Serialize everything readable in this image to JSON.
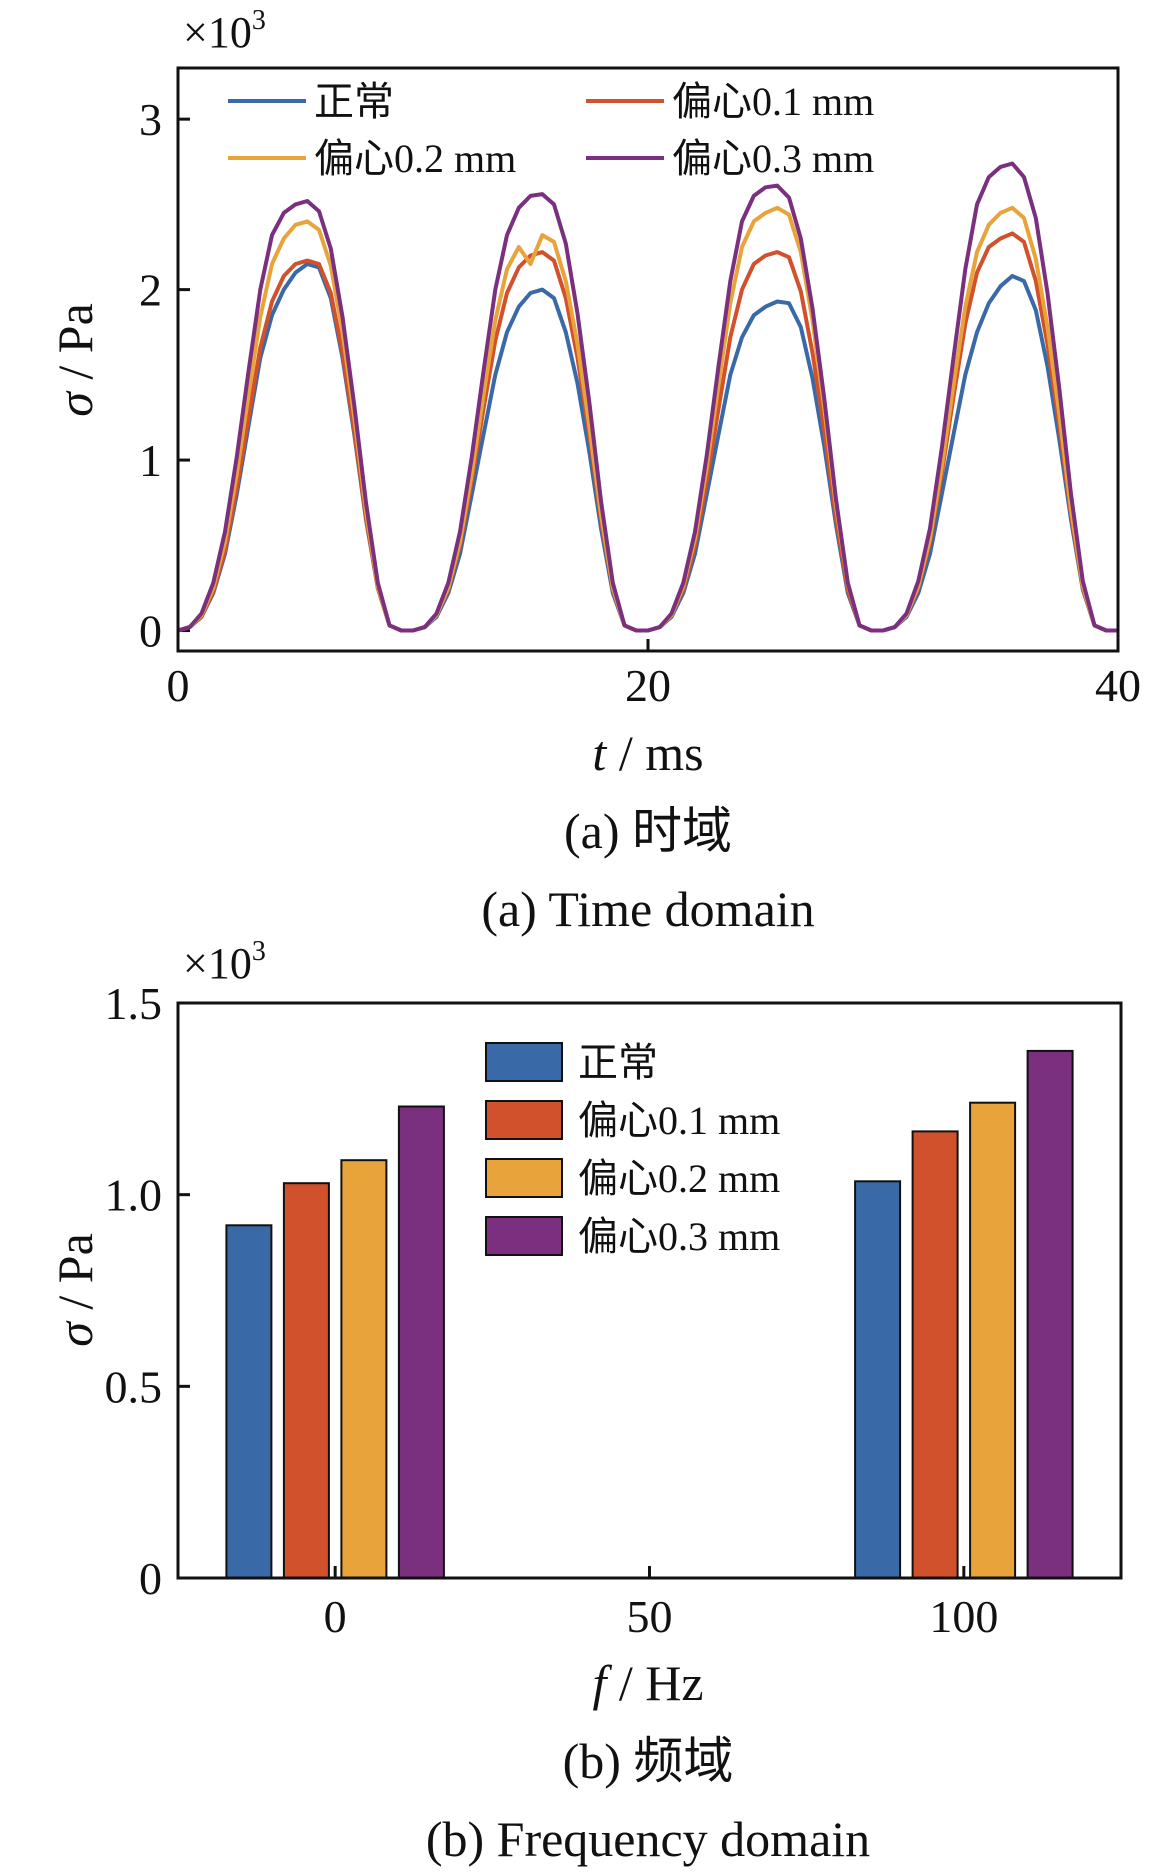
{
  "colors": {
    "normal": "#3a69a8",
    "ecc01": "#d2512d",
    "ecc02": "#e8a33a",
    "ecc03": "#7b2f7f"
  },
  "chart_data": [
    {
      "type": "line",
      "multiplier_base": "×10",
      "multiplier_exp": "3",
      "xlabel_symbol": "t",
      "xlabel_unit": " / ms",
      "ylabel_symbol": "σ",
      "ylabel_unit": " / Pa",
      "xlim": [
        0,
        40
      ],
      "ylim": [
        -0.12,
        3.3
      ],
      "xticks": [
        "0",
        "20",
        "40"
      ],
      "xtick_values": [
        0,
        20,
        40
      ],
      "yticks": [
        "0",
        "1",
        "2",
        "3"
      ],
      "ytick_values": [
        0,
        1,
        2,
        3
      ],
      "legend_location": "top",
      "caption_cn": "(a)  时域",
      "caption_en": "(a)  Time domain",
      "x": [
        0,
        0.5,
        1,
        1.5,
        2,
        2.5,
        3,
        3.5,
        4,
        4.5,
        5,
        5.5,
        6,
        6.5,
        7,
        7.5,
        8,
        8.5,
        9,
        9.5,
        10,
        10.5,
        11,
        11.5,
        12,
        12.5,
        13,
        13.5,
        14,
        14.5,
        15,
        15.5,
        16,
        16.5,
        17,
        17.5,
        18,
        18.5,
        19,
        19.5,
        20,
        20.5,
        21,
        21.5,
        22,
        22.5,
        23,
        23.5,
        24,
        24.5,
        25,
        25.5,
        26,
        26.5,
        27,
        27.5,
        28,
        28.5,
        29,
        29.5,
        30,
        30.5,
        31,
        31.5,
        32,
        32.5,
        33,
        33.5,
        34,
        34.5,
        35,
        35.5,
        36,
        36.5,
        37,
        37.5,
        38,
        38.5,
        39,
        39.5,
        40
      ],
      "series": [
        {
          "name": "正常",
          "color_key": "normal",
          "values": [
            0,
            0.02,
            0.08,
            0.22,
            0.45,
            0.8,
            1.2,
            1.6,
            1.85,
            2.0,
            2.1,
            2.15,
            2.13,
            1.95,
            1.6,
            1.15,
            0.65,
            0.25,
            0.03,
            0,
            0,
            0.02,
            0.08,
            0.22,
            0.45,
            0.8,
            1.15,
            1.5,
            1.75,
            1.9,
            1.98,
            2.0,
            1.95,
            1.75,
            1.45,
            1.05,
            0.6,
            0.22,
            0.03,
            0,
            0,
            0.02,
            0.08,
            0.22,
            0.45,
            0.8,
            1.15,
            1.5,
            1.72,
            1.85,
            1.9,
            1.93,
            1.92,
            1.78,
            1.48,
            1.08,
            0.62,
            0.22,
            0.03,
            0,
            0,
            0.02,
            0.08,
            0.22,
            0.45,
            0.8,
            1.15,
            1.5,
            1.75,
            1.92,
            2.02,
            2.08,
            2.05,
            1.88,
            1.55,
            1.12,
            0.65,
            0.24,
            0.03,
            0,
            0
          ]
        },
        {
          "name": "偏心0.1 mm",
          "color_key": "ecc01",
          "values": [
            0,
            0.02,
            0.08,
            0.23,
            0.47,
            0.84,
            1.25,
            1.66,
            1.93,
            2.08,
            2.15,
            2.17,
            2.15,
            1.98,
            1.63,
            1.17,
            0.66,
            0.25,
            0.03,
            0,
            0,
            0.02,
            0.09,
            0.24,
            0.5,
            0.88,
            1.3,
            1.7,
            1.98,
            2.13,
            2.2,
            2.22,
            2.17,
            1.95,
            1.6,
            1.15,
            0.65,
            0.24,
            0.03,
            0,
            0,
            0.02,
            0.09,
            0.24,
            0.5,
            0.88,
            1.3,
            1.72,
            2.0,
            2.15,
            2.2,
            2.22,
            2.19,
            1.99,
            1.63,
            1.17,
            0.66,
            0.24,
            0.03,
            0,
            0,
            0.02,
            0.09,
            0.25,
            0.52,
            0.92,
            1.37,
            1.8,
            2.1,
            2.25,
            2.3,
            2.33,
            2.28,
            2.05,
            1.68,
            1.2,
            0.68,
            0.25,
            0.03,
            0,
            0
          ]
        },
        {
          "name": "偏心0.2 mm",
          "color_key": "ecc02",
          "values": [
            0,
            0.02,
            0.09,
            0.25,
            0.52,
            0.92,
            1.38,
            1.84,
            2.15,
            2.3,
            2.38,
            2.4,
            2.35,
            2.14,
            1.75,
            1.25,
            0.7,
            0.26,
            0.03,
            0,
            0,
            0.02,
            0.09,
            0.25,
            0.52,
            0.92,
            1.38,
            1.82,
            2.12,
            2.25,
            2.15,
            2.32,
            2.28,
            2.05,
            1.68,
            1.2,
            0.68,
            0.25,
            0.03,
            0,
            0,
            0.02,
            0.09,
            0.26,
            0.54,
            0.96,
            1.44,
            1.92,
            2.25,
            2.4,
            2.45,
            2.48,
            2.44,
            2.22,
            1.82,
            1.3,
            0.73,
            0.27,
            0.03,
            0,
            0,
            0.02,
            0.09,
            0.26,
            0.54,
            0.96,
            1.44,
            1.9,
            2.22,
            2.38,
            2.45,
            2.48,
            2.42,
            2.18,
            1.78,
            1.27,
            0.71,
            0.26,
            0.03,
            0,
            0
          ]
        },
        {
          "name": "偏心0.3 mm",
          "color_key": "ecc03",
          "values": [
            0,
            0.02,
            0.1,
            0.28,
            0.58,
            1.02,
            1.52,
            2.0,
            2.32,
            2.45,
            2.5,
            2.52,
            2.46,
            2.24,
            1.84,
            1.32,
            0.75,
            0.28,
            0.03,
            0,
            0,
            0.02,
            0.1,
            0.28,
            0.58,
            1.02,
            1.52,
            2.0,
            2.32,
            2.48,
            2.55,
            2.56,
            2.5,
            2.27,
            1.86,
            1.34,
            0.76,
            0.28,
            0.03,
            0,
            0,
            0.02,
            0.1,
            0.28,
            0.58,
            1.03,
            1.55,
            2.05,
            2.4,
            2.55,
            2.6,
            2.61,
            2.54,
            2.3,
            1.89,
            1.36,
            0.77,
            0.28,
            0.03,
            0,
            0,
            0.02,
            0.1,
            0.29,
            0.6,
            1.07,
            1.6,
            2.12,
            2.5,
            2.66,
            2.72,
            2.74,
            2.66,
            2.42,
            1.98,
            1.42,
            0.8,
            0.29,
            0.03,
            0,
            0
          ]
        }
      ]
    },
    {
      "type": "bar",
      "multiplier_base": "×10",
      "multiplier_exp": "3",
      "xlabel_symbol": "f",
      "xlabel_unit": " / Hz",
      "ylabel_symbol": "σ",
      "ylabel_unit": " / Pa",
      "xlim": [
        -25,
        125
      ],
      "ylim": [
        0,
        1.5
      ],
      "xticks": [
        "0",
        "50",
        "100"
      ],
      "xtick_values": [
        0,
        50,
        100
      ],
      "yticks": [
        "0",
        "0.5",
        "1.0",
        "1.5"
      ],
      "ytick_values": [
        0,
        0.5,
        1.0,
        1.5
      ],
      "legend_location": "top-center",
      "caption_cn": "(b)  频域",
      "caption_en": "(b)  Frequency domain",
      "categories": [
        0,
        100
      ],
      "series": [
        {
          "name": "正常",
          "color_key": "normal",
          "values": [
            0.92,
            1.035
          ]
        },
        {
          "name": "偏心0.1 mm",
          "color_key": "ecc01",
          "values": [
            1.03,
            1.165
          ]
        },
        {
          "name": "偏心0.2 mm",
          "color_key": "ecc02",
          "values": [
            1.09,
            1.24
          ]
        },
        {
          "name": "偏心0.3 mm",
          "color_key": "ecc03",
          "values": [
            1.23,
            1.375
          ]
        }
      ]
    }
  ]
}
